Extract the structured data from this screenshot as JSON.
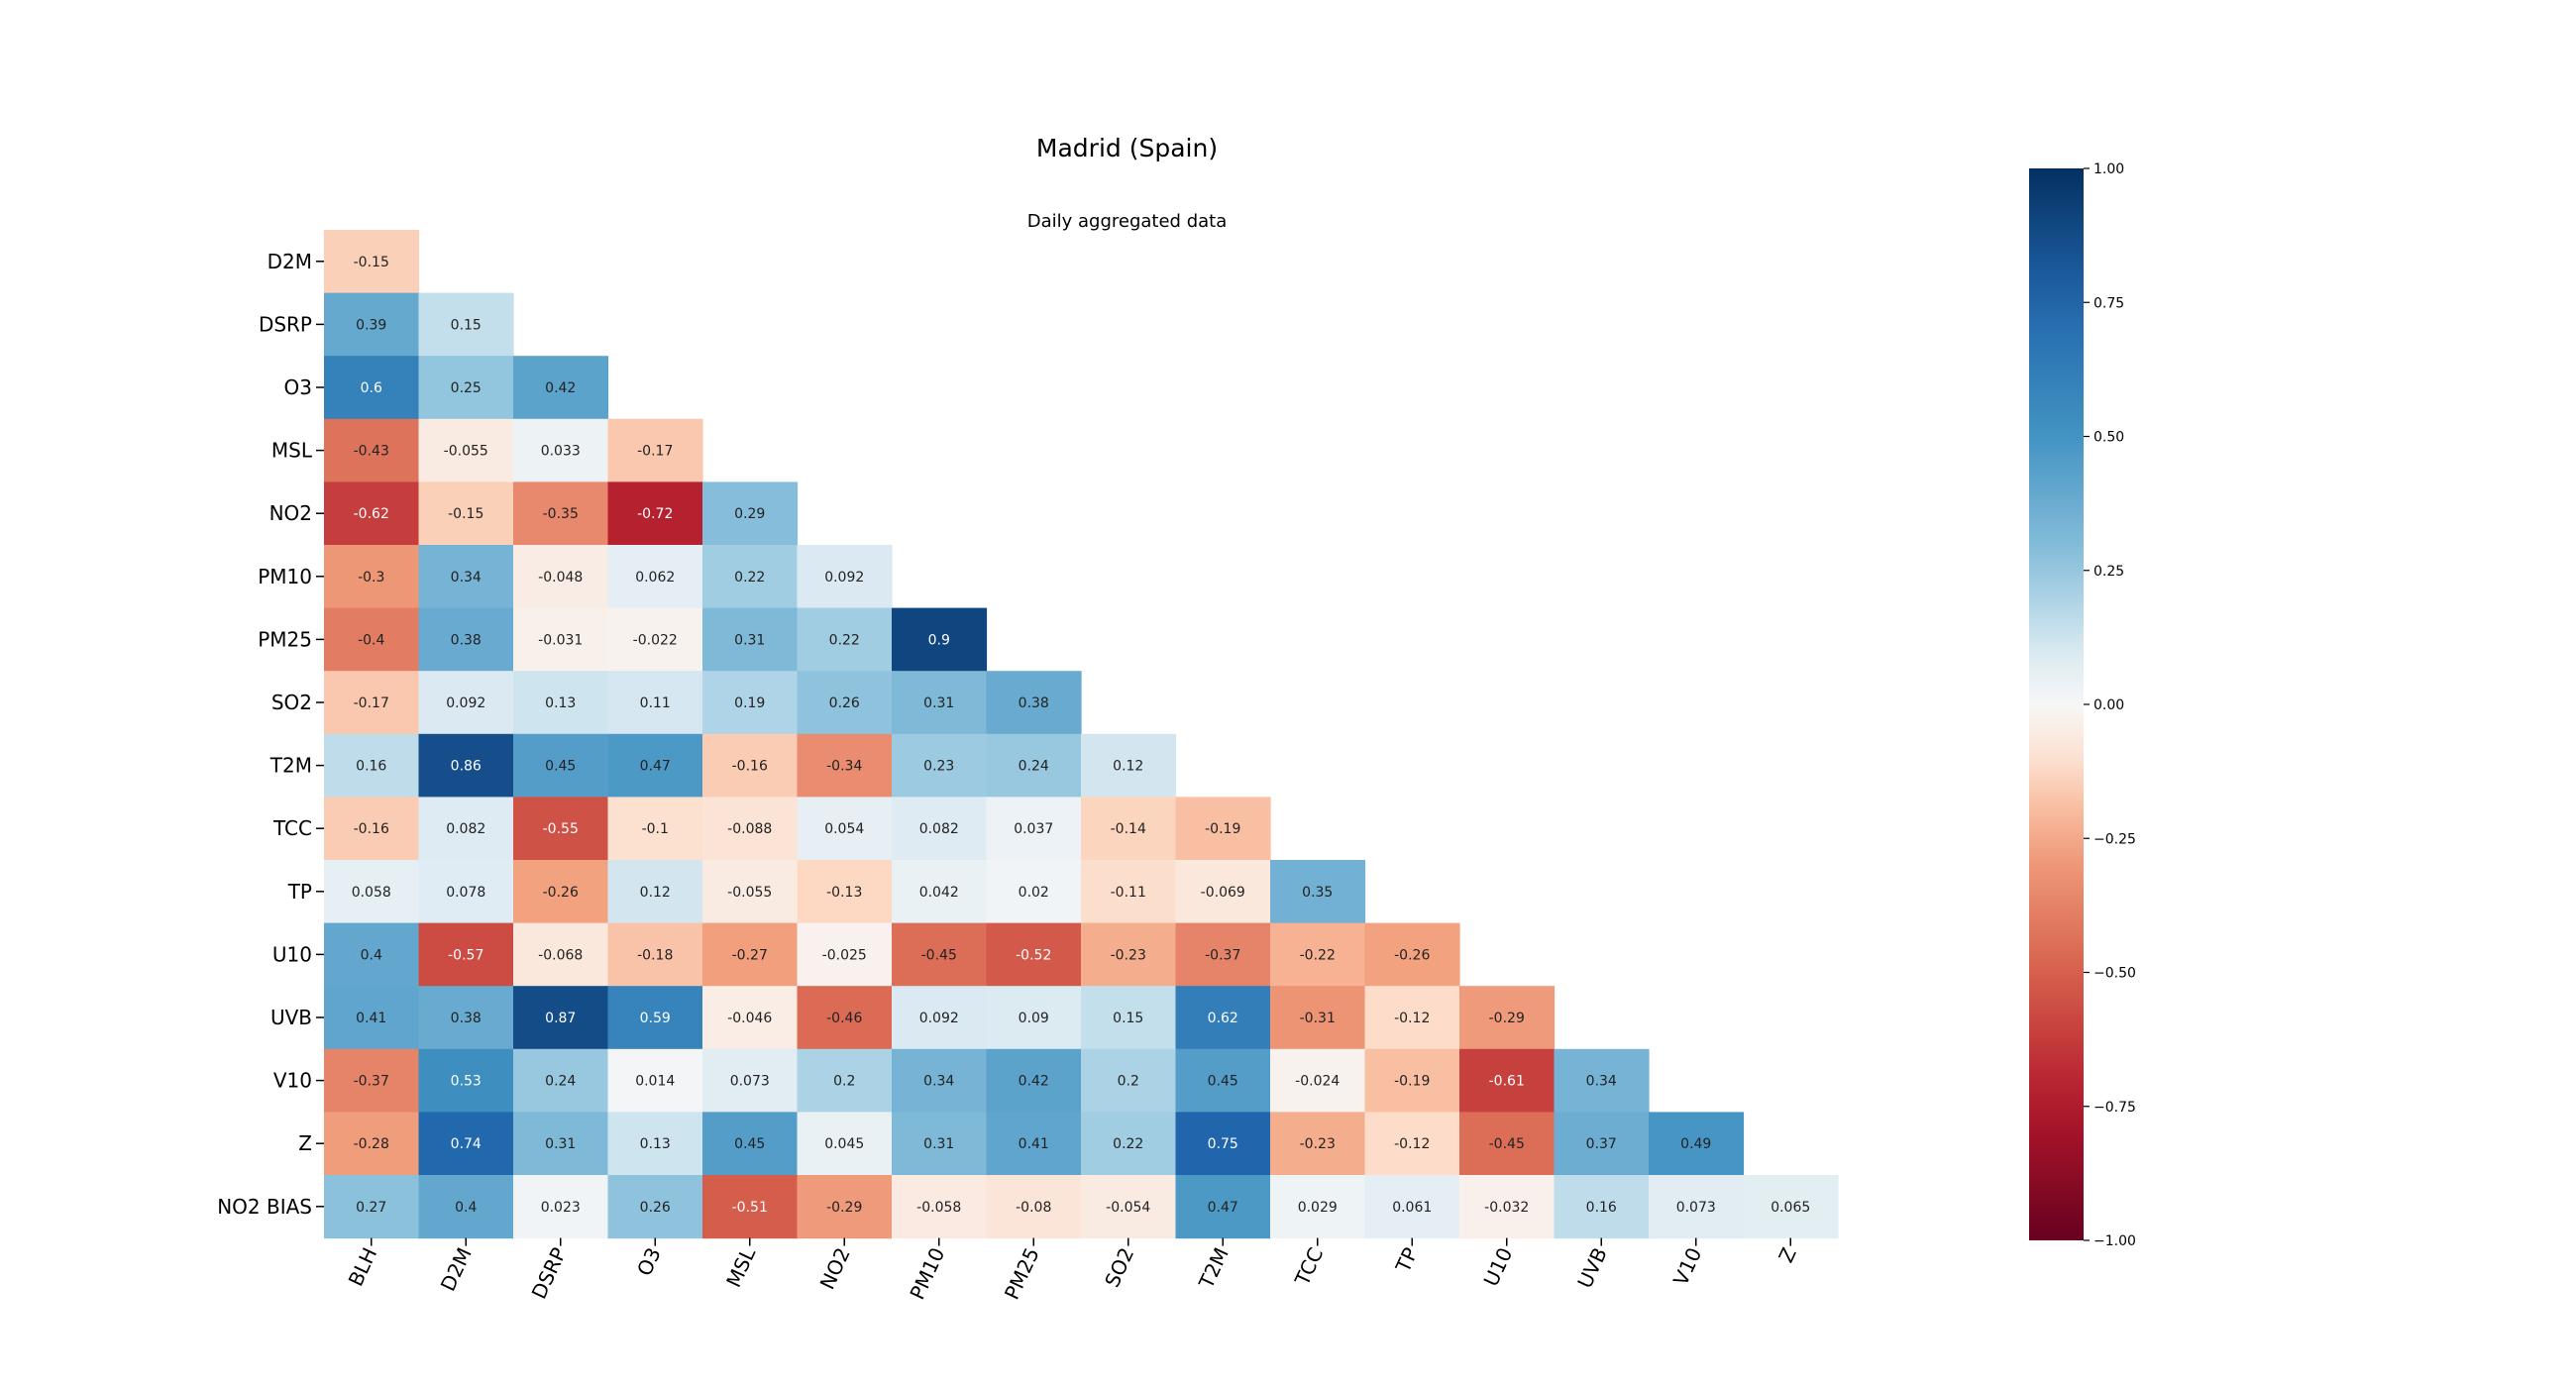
{
  "chart_data": {
    "type": "heatmap",
    "title": "Madrid (Spain)",
    "subtitle": "Daily aggregated data",
    "x_labels": [
      "BLH",
      "D2M",
      "DSRP",
      "O3",
      "MSL",
      "NO2",
      "PM10",
      "PM25",
      "SO2",
      "T2M",
      "TCC",
      "TP",
      "U10",
      "UVB",
      "V10",
      "Z"
    ],
    "y_labels": [
      "D2M",
      "DSRP",
      "O3",
      "MSL",
      "NO2",
      "PM10",
      "PM25",
      "SO2",
      "T2M",
      "TCC",
      "TP",
      "U10",
      "UVB",
      "V10",
      "Z",
      "NO2 BIAS"
    ],
    "annotations": [
      [
        "-0.15"
      ],
      [
        "0.39",
        "0.15"
      ],
      [
        "0.6",
        "0.25",
        "0.42"
      ],
      [
        "-0.43",
        "-0.055",
        "0.033",
        "-0.17"
      ],
      [
        "-0.62",
        "-0.15",
        "-0.35",
        "-0.72",
        "0.29"
      ],
      [
        "-0.3",
        "0.34",
        "-0.048",
        "0.062",
        "0.22",
        "0.092"
      ],
      [
        "-0.4",
        "0.38",
        "-0.031",
        "-0.022",
        "0.31",
        "0.22",
        "0.9"
      ],
      [
        "-0.17",
        "0.092",
        "0.13",
        "0.11",
        "0.19",
        "0.26",
        "0.31",
        "0.38"
      ],
      [
        "0.16",
        "0.86",
        "0.45",
        "0.47",
        "-0.16",
        "-0.34",
        "0.23",
        "0.24",
        "0.12"
      ],
      [
        "-0.16",
        "0.082",
        "-0.55",
        "-0.1",
        "-0.088",
        "0.054",
        "0.082",
        "0.037",
        "-0.14",
        "-0.19"
      ],
      [
        "0.058",
        "0.078",
        "-0.26",
        "0.12",
        "-0.055",
        "-0.13",
        "0.042",
        "0.02",
        "-0.11",
        "-0.069",
        "0.35"
      ],
      [
        "0.4",
        "-0.57",
        "-0.068",
        "-0.18",
        "-0.27",
        "-0.025",
        "-0.45",
        "-0.52",
        "-0.23",
        "-0.37",
        "-0.22",
        "-0.26"
      ],
      [
        "0.41",
        "0.38",
        "0.87",
        "0.59",
        "-0.046",
        "-0.46",
        "0.092",
        "0.09",
        "0.15",
        "0.62",
        "-0.31",
        "-0.12",
        "-0.29"
      ],
      [
        "-0.37",
        "0.53",
        "0.24",
        "0.014",
        "0.073",
        "0.2",
        "0.34",
        "0.42",
        "0.2",
        "0.45",
        "-0.024",
        "-0.19",
        "-0.61",
        "0.34"
      ],
      [
        "-0.28",
        "0.74",
        "0.31",
        "0.13",
        "0.45",
        "0.045",
        "0.31",
        "0.41",
        "0.22",
        "0.75",
        "-0.23",
        "-0.12",
        "-0.45",
        "0.37",
        "0.49"
      ],
      [
        "0.27",
        "0.4",
        "0.023",
        "0.26",
        "-0.51",
        "-0.29",
        "-0.058",
        "-0.08",
        "-0.054",
        "0.47",
        "0.029",
        "0.061",
        "-0.032",
        "0.16",
        "0.073",
        "0.065"
      ]
    ],
    "colorbar": {
      "colormap": "RdBu",
      "range": [
        -1.0,
        1.0
      ],
      "ticks": [
        "1.00",
        "0.75",
        "0.50",
        "0.25",
        "0.00",
        "−0.25",
        "−0.50",
        "−0.75",
        "−1.00"
      ]
    }
  }
}
